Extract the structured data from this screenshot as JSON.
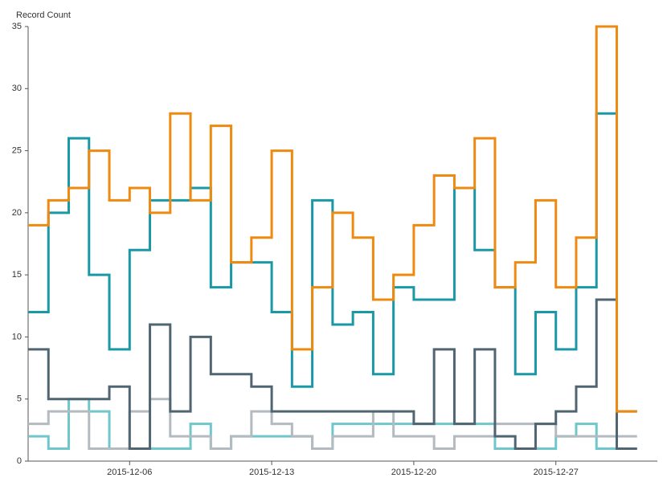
{
  "chart_data": {
    "type": "step",
    "y_label": "Record Count",
    "x": [
      "2015-12-01",
      "2015-12-02",
      "2015-12-03",
      "2015-12-04",
      "2015-12-05",
      "2015-12-06",
      "2015-12-07",
      "2015-12-08",
      "2015-12-09",
      "2015-12-10",
      "2015-12-11",
      "2015-12-12",
      "2015-12-13",
      "2015-12-14",
      "2015-12-15",
      "2015-12-16",
      "2015-12-17",
      "2015-12-18",
      "2015-12-19",
      "2015-12-20",
      "2015-12-21",
      "2015-12-22",
      "2015-12-23",
      "2015-12-24",
      "2015-12-25",
      "2015-12-26",
      "2015-12-27",
      "2015-12-28",
      "2015-12-29",
      "2015-12-30"
    ],
    "xlim": [
      "2015-12-01",
      "2016-01-01"
    ],
    "xticks": [
      "2015-12-06",
      "2015-12-13",
      "2015-12-20",
      "2015-12-27"
    ],
    "ylim": [
      0,
      35
    ],
    "yticks": [
      0,
      5,
      10,
      15,
      20,
      25,
      30,
      35
    ],
    "series": [
      {
        "color": "#6fc7cc",
        "values": [
          2,
          1,
          5,
          4,
          1,
          1,
          1,
          1,
          3,
          1,
          2,
          2,
          2,
          2,
          1,
          3,
          3,
          3,
          3,
          3,
          3,
          3,
          3,
          1,
          1,
          1,
          2,
          3,
          1,
          1
        ]
      },
      {
        "color": "#b3bac0",
        "values": [
          3,
          4,
          4,
          1,
          1,
          4,
          5,
          2,
          2,
          1,
          2,
          4,
          3,
          2,
          1,
          2,
          2,
          4,
          2,
          2,
          1,
          2,
          2,
          3,
          3,
          3,
          2,
          2,
          2,
          2
        ]
      },
      {
        "color": "#4f6571",
        "values": [
          9,
          5,
          5,
          5,
          6,
          1,
          11,
          4,
          10,
          7,
          7,
          6,
          4,
          4,
          4,
          4,
          4,
          4,
          4,
          3,
          9,
          3,
          9,
          2,
          1,
          3,
          4,
          6,
          13,
          1
        ]
      },
      {
        "color": "#1a98a6",
        "values": [
          12,
          20,
          26,
          15,
          9,
          17,
          21,
          21,
          22,
          14,
          16,
          16,
          12,
          6,
          21,
          11,
          12,
          7,
          14,
          13,
          13,
          22,
          17,
          14,
          7,
          12,
          9,
          14,
          28,
          4
        ]
      },
      {
        "color": "#ef8a10",
        "values": [
          19,
          21,
          22,
          25,
          21,
          22,
          20,
          28,
          21,
          27,
          16,
          18,
          25,
          9,
          14,
          20,
          18,
          13,
          15,
          19,
          23,
          22,
          26,
          14,
          16,
          21,
          14,
          18,
          35,
          4
        ]
      }
    ]
  }
}
